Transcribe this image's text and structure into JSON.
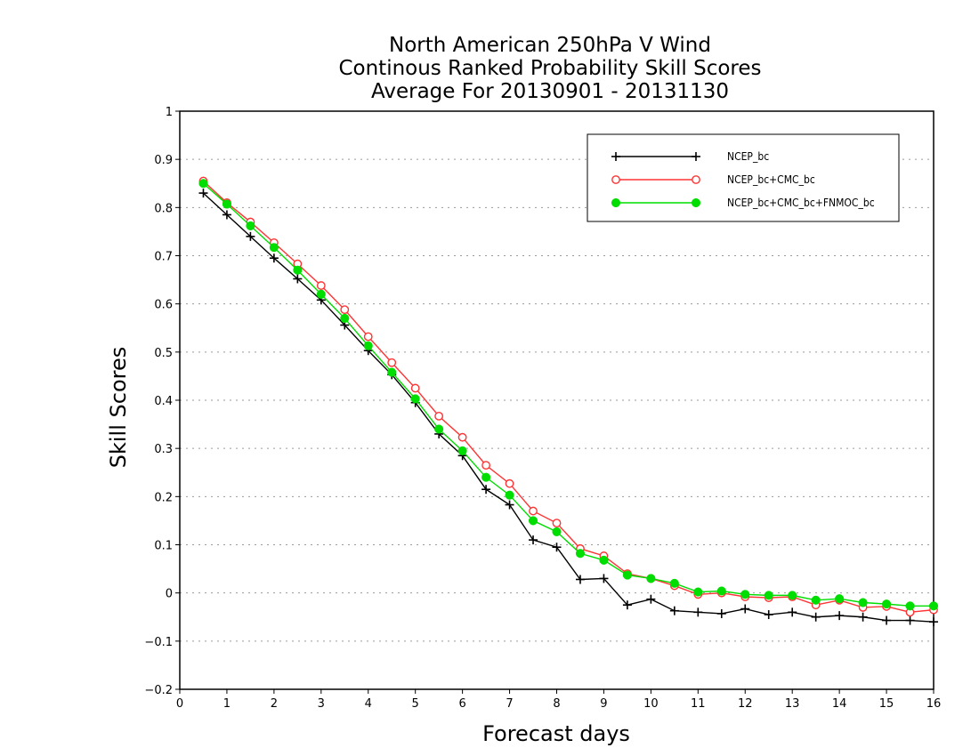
{
  "chart_data": {
    "type": "line",
    "title": [
      "North American 250hPa V Wind",
      "Continous Ranked Probability Skill Scores",
      "Average For 20130901 - 20131130"
    ],
    "xlabel": "Forecast days",
    "ylabel": "Skill Scores",
    "xlim": [
      0,
      16
    ],
    "ylim": [
      -0.2,
      1
    ],
    "xticks": [
      "0",
      "1",
      "2",
      "3",
      "4",
      "5",
      "6",
      "7",
      "8",
      "9",
      "10",
      "11",
      "12",
      "13",
      "14",
      "15",
      "16"
    ],
    "yticks": [
      "1",
      "0.9",
      "0.8",
      "0.7",
      "0.6",
      "0.5",
      "0.4",
      "0.3",
      "0.2",
      "0.1",
      "0",
      "−0.1",
      "−0.2"
    ],
    "ytick_values": [
      1,
      0.9,
      0.8,
      0.7,
      0.6,
      0.5,
      0.4,
      0.3,
      0.2,
      0.1,
      0,
      -0.1,
      -0.2
    ],
    "grid": "horizontal dotted",
    "legend_position": "top-right",
    "x": [
      0.5,
      1,
      1.5,
      2,
      2.5,
      3,
      3.5,
      4,
      4.5,
      5,
      5.5,
      6,
      6.5,
      7,
      7.5,
      8,
      8.5,
      9,
      9.5,
      10,
      10.5,
      11,
      11.5,
      12,
      12.5,
      13,
      13.5,
      14,
      14.5,
      15,
      15.5,
      16
    ],
    "series": [
      {
        "name": "NCEP_bc",
        "color": "#000000",
        "marker": "plus",
        "values": [
          0.83,
          0.785,
          0.74,
          0.695,
          0.652,
          0.608,
          0.556,
          0.503,
          0.453,
          0.395,
          0.33,
          0.285,
          0.215,
          0.183,
          0.11,
          0.095,
          0.028,
          0.03,
          -0.025,
          -0.013,
          -0.037,
          -0.04,
          -0.043,
          -0.033,
          -0.045,
          -0.04,
          -0.05,
          -0.047,
          -0.05,
          -0.057,
          -0.057,
          -0.06
        ]
      },
      {
        "name": "NCEP_bc+CMC_bc",
        "color": "#ff3333",
        "marker": "open-circle",
        "values": [
          0.855,
          0.81,
          0.77,
          0.727,
          0.683,
          0.638,
          0.588,
          0.532,
          0.478,
          0.425,
          0.367,
          0.323,
          0.265,
          0.227,
          0.17,
          0.145,
          0.092,
          0.077,
          0.04,
          0.03,
          0.015,
          -0.003,
          0.0,
          -0.008,
          -0.01,
          -0.008,
          -0.025,
          -0.015,
          -0.03,
          -0.028,
          -0.04,
          -0.035
        ]
      },
      {
        "name": "NCEP_bc+CMC_bc+FNMOC_bc",
        "color": "#00dd00",
        "marker": "filled-circle",
        "values": [
          0.85,
          0.807,
          0.762,
          0.717,
          0.67,
          0.62,
          0.57,
          0.513,
          0.458,
          0.403,
          0.34,
          0.295,
          0.24,
          0.203,
          0.15,
          0.127,
          0.082,
          0.068,
          0.037,
          0.03,
          0.02,
          0.002,
          0.004,
          -0.003,
          -0.005,
          -0.005,
          -0.015,
          -0.012,
          -0.02,
          -0.023,
          -0.027,
          -0.027
        ]
      }
    ]
  }
}
